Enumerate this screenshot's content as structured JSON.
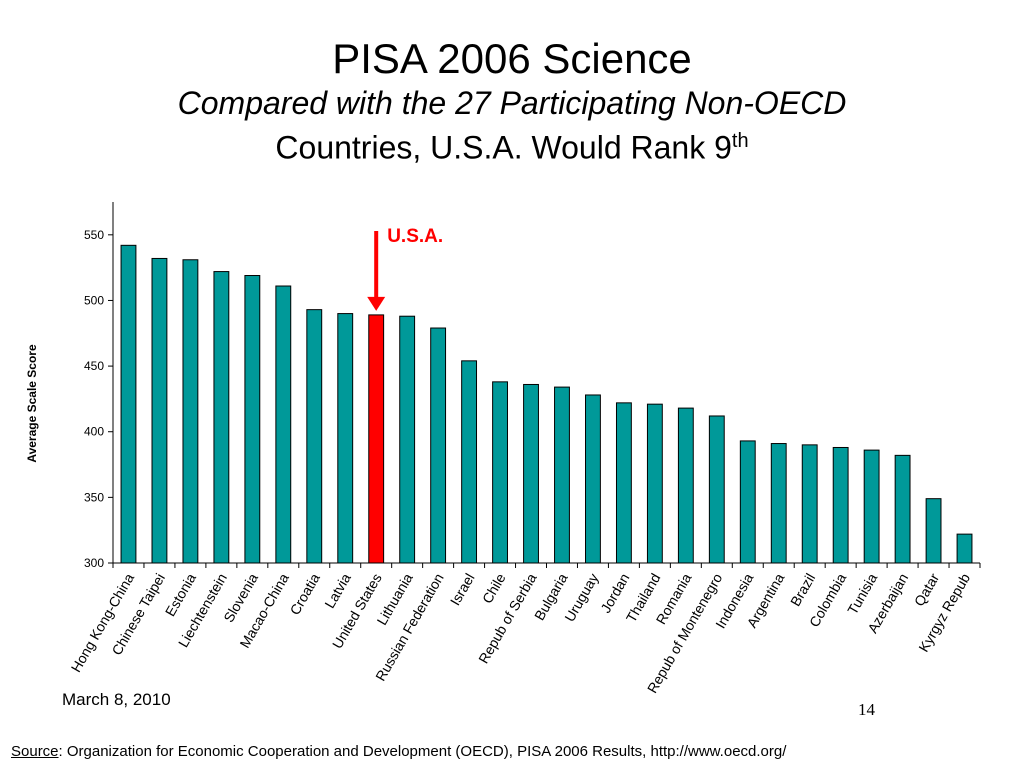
{
  "slide": {
    "title": "PISA 2006 Science",
    "subtitle_line1": "Compared with the 27 Participating Non-OECD",
    "subtitle_line2": "Countries, U.S.A. Would Rank 9",
    "subtitle_sup": "th",
    "date": "March 8, 2010",
    "page_number": "14",
    "source_label": "Source",
    "source_text": ": Organization for Economic Cooperation and Development (OECD), PISA 2006 Results, http://www.oecd.org/"
  },
  "chart_data": {
    "type": "bar",
    "title": "",
    "xlabel": "",
    "ylabel": "Average Scale Score",
    "ylim": [
      300,
      575
    ],
    "yticks": [
      300,
      350,
      400,
      450,
      500,
      550
    ],
    "grid": false,
    "bar_color": "#009999",
    "highlight_color": "#ff0000",
    "annotation": {
      "text": "U.S.A.",
      "target": "United States",
      "color": "#ff0000"
    },
    "categories": [
      "Hong Kong-China",
      "Chinese Taipei",
      "Estonia",
      "Liechtenstein",
      "Slovenia",
      "Macao-China",
      "Croatia",
      "Latvia",
      "United States",
      "Lithuania",
      "Russian Federation",
      "Israel",
      "Chile",
      "Repub of Serbia",
      "Bulgaria",
      "Uruguay",
      "Jordan",
      "Thailand",
      "Romania",
      "Repub of Montenegro",
      "Indonesia",
      "Argentina",
      "Brazil",
      "Colombia",
      "Tunisia",
      "Azerbaijan",
      "Qatar",
      "Kyrgyz Repub"
    ],
    "values": [
      542,
      532,
      531,
      522,
      519,
      511,
      493,
      490,
      489,
      488,
      479,
      454,
      438,
      436,
      434,
      428,
      422,
      421,
      418,
      412,
      393,
      391,
      390,
      388,
      386,
      382,
      349,
      322
    ],
    "highlight": [
      "United States"
    ]
  }
}
